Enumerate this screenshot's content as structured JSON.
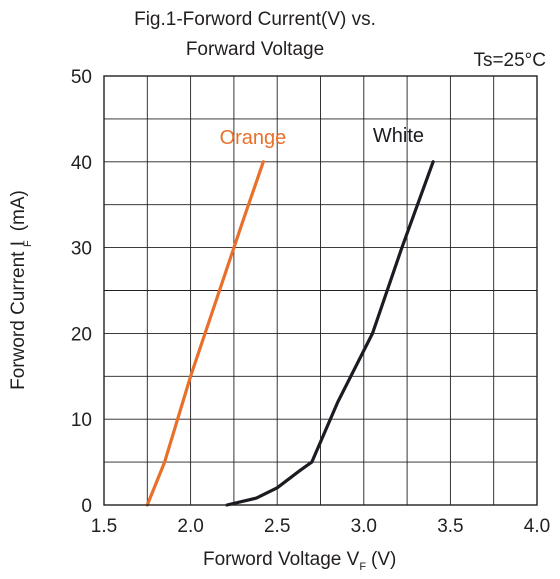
{
  "chart_data": {
    "type": "line",
    "title_line1": "Fig.1-Forword Current(V) vs.",
    "title_line2": "Forward Voltage",
    "condition": "Ts=25°C",
    "xlabel_main": "Forword Voltage V",
    "xlabel_sub": "F",
    "xlabel_unit": "(V)",
    "ylabel_main": "Forword Current I",
    "ylabel_sub": "F",
    "ylabel_unit": "(mA)",
    "xlim": [
      1.5,
      4.0
    ],
    "ylim": [
      0,
      50
    ],
    "xticks": [
      1.5,
      2.0,
      2.5,
      3.0,
      3.5,
      4.0
    ],
    "xtick_labels": [
      "1.5",
      "2.0",
      "2.5",
      "3.0",
      "3.5",
      "4.0"
    ],
    "yticks": [
      0,
      10,
      20,
      30,
      40,
      50
    ],
    "ytick_labels": [
      "0",
      "10",
      "20",
      "30",
      "40",
      "50"
    ],
    "grid": true,
    "series": [
      {
        "name": "Orange",
        "color": "#e8702a",
        "label_at": [
          2.36,
          42.1
        ],
        "x": [
          1.75,
          1.85,
          2.0,
          2.15,
          2.3,
          2.42
        ],
        "y": [
          0,
          5,
          15,
          24,
          33,
          40
        ]
      },
      {
        "name": "White",
        "color": "#1b1b22",
        "label_at": [
          3.2,
          42.3
        ],
        "x": [
          2.21,
          2.38,
          2.5,
          2.63,
          2.7,
          2.85,
          3.05,
          3.22,
          3.4
        ],
        "y": [
          0,
          0.8,
          2,
          4,
          5,
          12,
          20,
          30,
          40
        ]
      }
    ]
  }
}
